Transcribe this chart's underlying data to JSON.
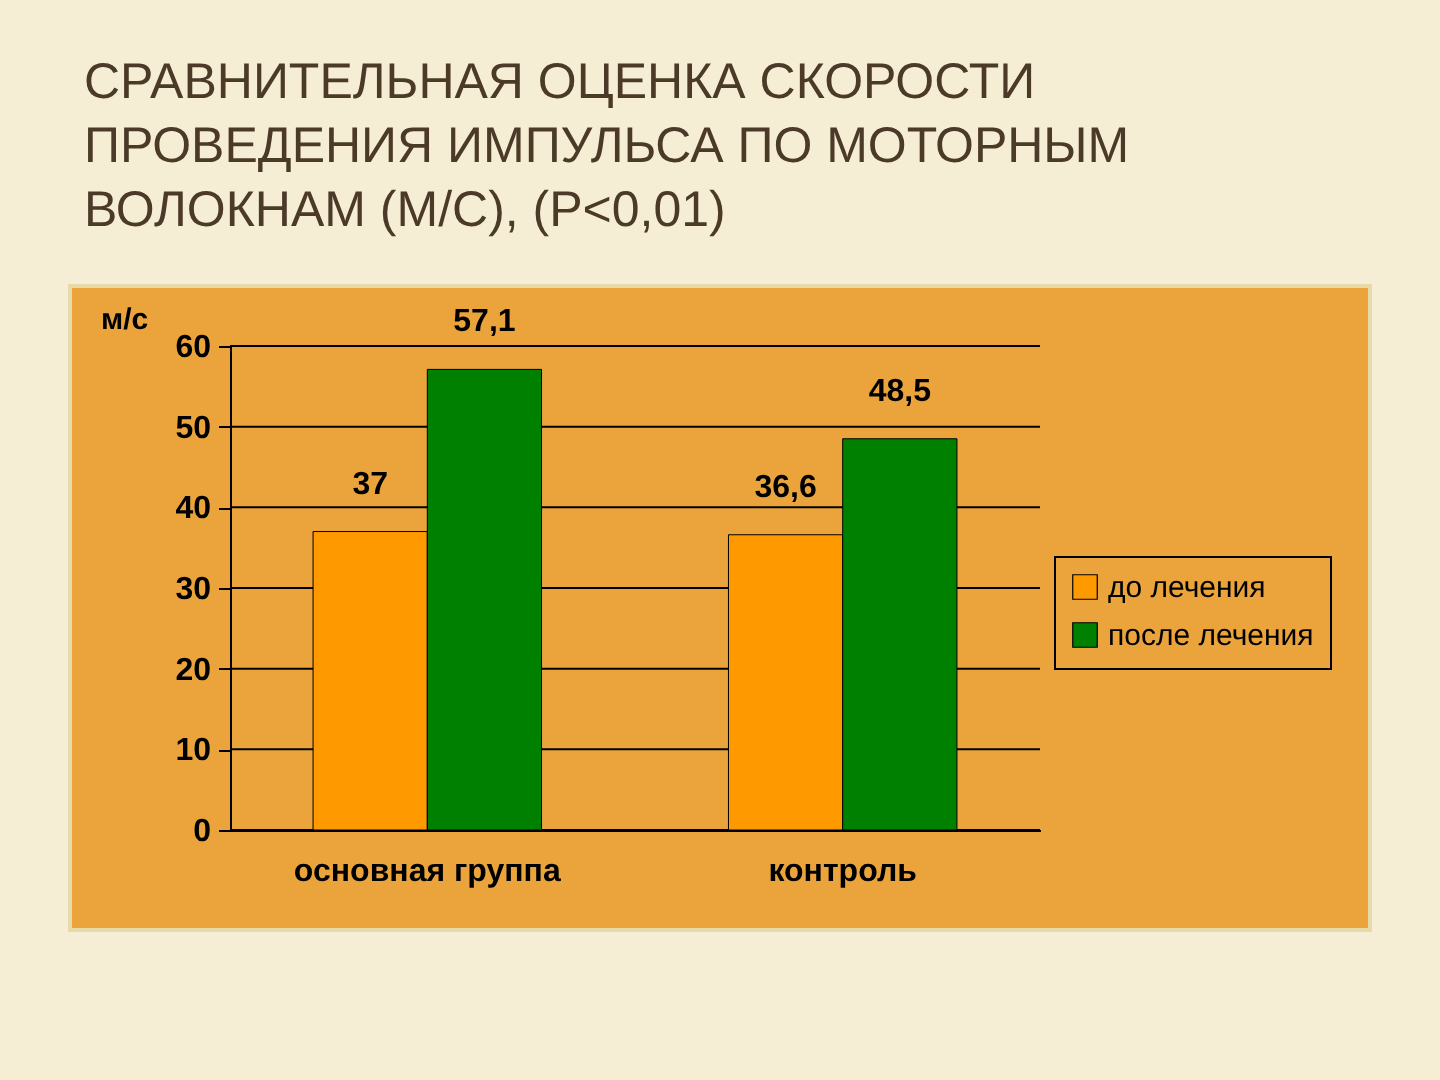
{
  "chart_data": {
    "type": "bar",
    "title": "СРАВНИТЕЛЬНАЯ ОЦЕНКА СКОРОСТИ ПРОВЕДЕНИЯ ИМПУЛЬСА ПО МОТОРНЫМ ВОЛОКНАМ (М/С), (Р<0,01)",
    "ylabel": "м/с",
    "categories": [
      "основная группа",
      "контроль"
    ],
    "series": [
      {
        "name": "до лечения",
        "color": "#ff9900",
        "values": [
          37,
          36.6
        ],
        "value_labels": [
          "37",
          "36,6"
        ]
      },
      {
        "name": "после лечения",
        "color": "#008000",
        "values": [
          57.1,
          48.5
        ],
        "value_labels": [
          "57,1",
          "48,5"
        ]
      }
    ],
    "ylim": [
      0,
      60
    ],
    "yticks": [
      0,
      10,
      20,
      30,
      40,
      50,
      60
    ],
    "grid": "y",
    "legend": "right"
  }
}
